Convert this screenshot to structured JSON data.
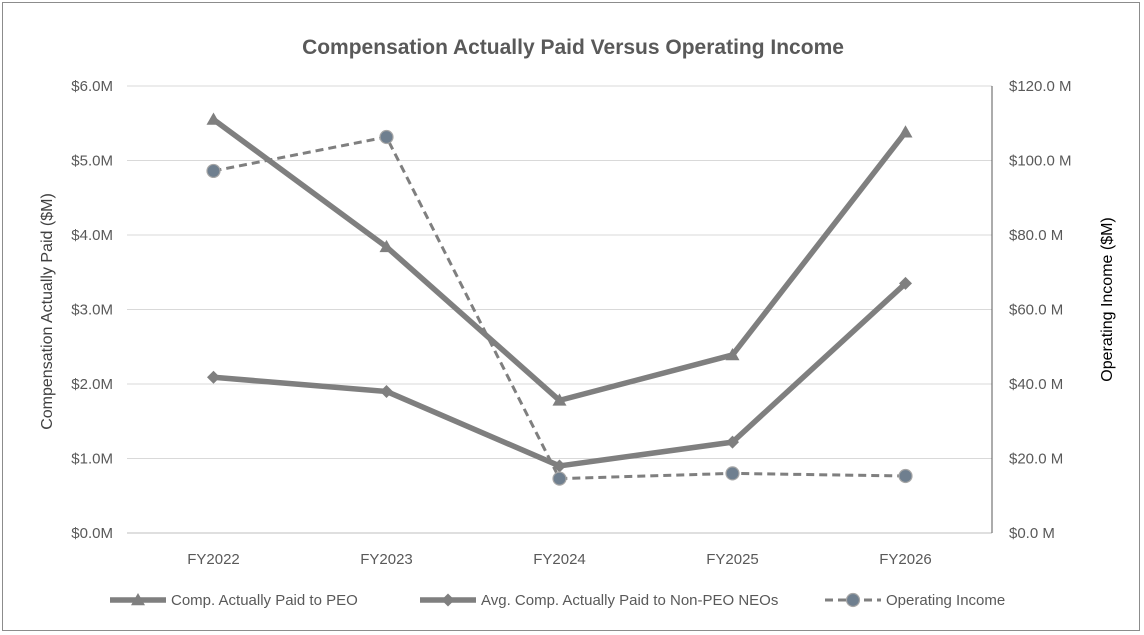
{
  "chart_data": {
    "type": "line",
    "title": "Compensation Actually Paid Versus Operating Income",
    "categories": [
      "FY2022",
      "FY2023",
      "FY2024",
      "FY2025",
      "FY2026"
    ],
    "y_left": {
      "label": "Compensation Actually Paid ($M)",
      "range": [
        0,
        6
      ],
      "ticks": [
        0,
        1,
        2,
        3,
        4,
        5,
        6
      ],
      "tick_labels": [
        "$0.0M",
        "$1.0M",
        "$2.0M",
        "$3.0M",
        "$4.0M",
        "$5.0M",
        "$6.0M"
      ]
    },
    "y_right": {
      "label": "Operating Income ($M)",
      "range": [
        0,
        120
      ],
      "ticks": [
        0,
        20,
        40,
        60,
        80,
        100,
        120
      ],
      "tick_labels": [
        "$0.0 M",
        "$20.0 M",
        "$40.0 M",
        "$60.0 M",
        "$80.0 M",
        "$100.0 M",
        "$120.0 M"
      ]
    },
    "grid": true,
    "legend_position": "bottom",
    "series": [
      {
        "name": "Comp. Actually Paid to PEO",
        "axis": "left",
        "marker": "triangle",
        "style": "solid",
        "color": "#7f7f7f",
        "values": [
          5.55,
          3.84,
          1.78,
          2.39,
          5.38
        ]
      },
      {
        "name": "Avg. Comp. Actually Paid to Non-PEO NEOs",
        "axis": "left",
        "marker": "diamond",
        "style": "solid",
        "color": "#7f7f7f",
        "values": [
          2.09,
          1.9,
          0.9,
          1.22,
          3.35
        ]
      },
      {
        "name": "Operating Income",
        "axis": "right",
        "marker": "circle",
        "style": "dashed",
        "color": "#7f7f7f",
        "marker_color": "#6f7f8f",
        "values": [
          97.2,
          106.3,
          14.6,
          16.0,
          15.3
        ]
      }
    ]
  }
}
